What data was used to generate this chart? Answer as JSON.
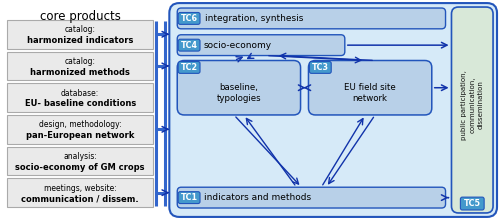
{
  "title": "core products",
  "left_boxes": [
    {
      "line1": "catalog:",
      "line2": "harmonized indicators"
    },
    {
      "line1": "catalog:",
      "line2": "harmonized methods"
    },
    {
      "line1": "database:",
      "line2": "EU- baseline conditions"
    },
    {
      "line1": "design, methodology:",
      "line2": "pan-European network"
    },
    {
      "line1": "analysis:",
      "line2": "socio-economy of GM crops"
    },
    {
      "line1": "meetings, website:",
      "line2": "communication / dissem."
    }
  ],
  "outer_bg": "#d6eaf8",
  "outer_border": "#2255bb",
  "inner_box_bg": "#c8dff0",
  "tc_box_bg": "#b8d0e8",
  "tc_label_bg": "#4499cc",
  "tc_label_color": "#ffffff",
  "left_box_bg": "#eaeaea",
  "left_box_border": "#aaaaaa",
  "tc5_bg": "#d8e8d8",
  "connector_color": "#3366cc",
  "arrow_color": "#1133aa",
  "title_fontsize": 8.5,
  "label_fontsize": 5.5,
  "bold_fontsize": 6.0,
  "tc_fontsize": 5.8,
  "text_fontsize": 6.5
}
